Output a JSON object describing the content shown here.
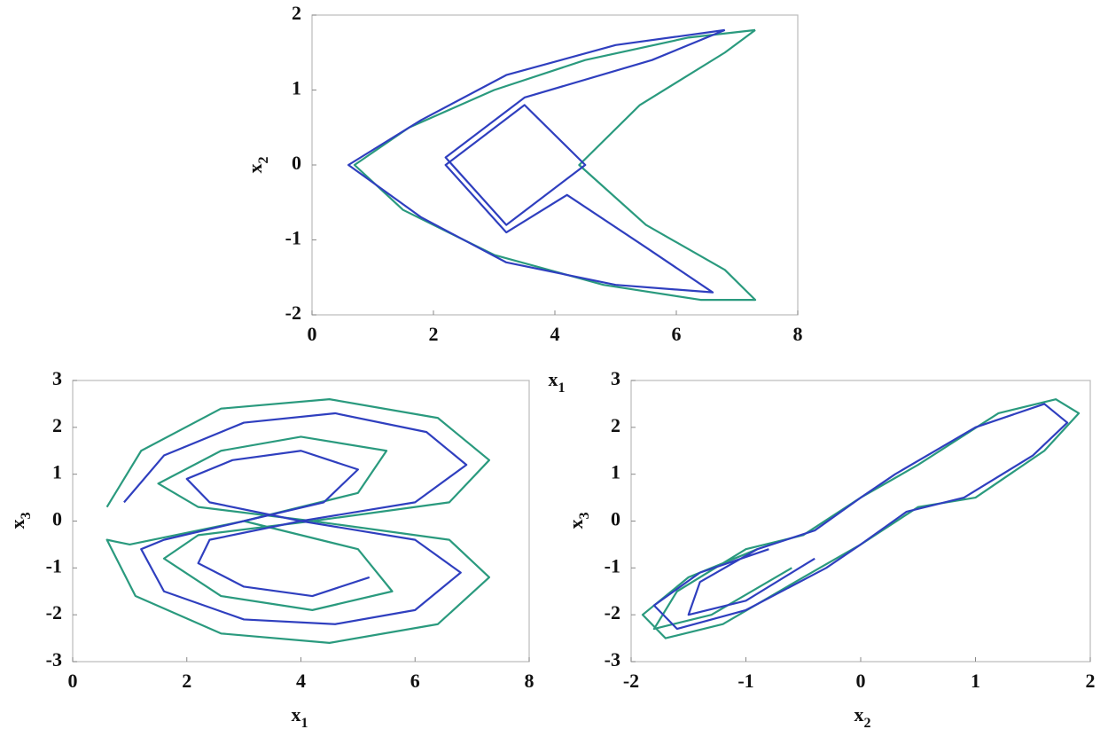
{
  "chart_data": [
    {
      "type": "line",
      "xlabel": "x",
      "xlabel_sub": "1",
      "ylabel": "x",
      "ylabel_sub": "2",
      "xlim": [
        0,
        8
      ],
      "ylim": [
        -2,
        2
      ],
      "xticks": [
        0,
        2,
        4,
        6,
        8
      ],
      "yticks": [
        -2,
        -1,
        0,
        1,
        2
      ],
      "series": [
        {
          "color": "#2a9a7e",
          "x": [
            7.3,
            6.2,
            4.5,
            3,
            1.6,
            0.7,
            1.5,
            3,
            4.8,
            6.4,
            7.3,
            6.8,
            5.5,
            4.4,
            5.4,
            6.8,
            7.3
          ],
          "values": [
            1.8,
            1.7,
            1.4,
            1,
            0.5,
            0,
            -0.6,
            -1.2,
            -1.6,
            -1.8,
            -1.8,
            -1.4,
            -0.8,
            0,
            0.8,
            1.5,
            1.8
          ]
        },
        {
          "color": "#2f3fbf",
          "x": [
            6.8,
            5,
            3.2,
            1.8,
            0.6,
            1.8,
            3.2,
            5,
            6.6,
            5.5,
            4.2,
            3.2,
            2.2,
            3.5,
            4.5,
            3.2,
            2.2,
            3.5,
            5.6,
            6.8
          ],
          "values": [
            1.8,
            1.6,
            1.2,
            0.6,
            0,
            -0.7,
            -1.3,
            -1.6,
            -1.7,
            -1.1,
            -0.4,
            -0.9,
            0,
            0.8,
            0,
            -0.8,
            0.1,
            0.9,
            1.4,
            1.8
          ]
        }
      ]
    },
    {
      "type": "line",
      "xlabel": "x",
      "xlabel_sub": "1",
      "ylabel": "x",
      "ylabel_sub": "3",
      "xlim": [
        0,
        8
      ],
      "ylim": [
        -3,
        3
      ],
      "xticks": [
        0,
        2,
        4,
        6,
        8
      ],
      "yticks": [
        -3,
        -2,
        -1,
        0,
        1,
        2,
        3
      ],
      "series": [
        {
          "color": "#2a9a7e",
          "x": [
            0.6,
            1.2,
            2.6,
            4.5,
            6.4,
            7.3,
            6.6,
            4.2,
            2.2,
            1.5,
            2.6,
            4,
            5.5,
            5,
            3,
            1,
            0.6,
            1.1,
            2.6,
            4.5,
            6.4,
            7.3,
            6.6,
            4.2,
            2.2,
            1.6,
            2.6,
            4.2,
            5.6,
            5,
            3
          ],
          "values": [
            0.3,
            1.5,
            2.4,
            2.6,
            2.2,
            1.3,
            0.4,
            0,
            0.3,
            0.8,
            1.5,
            1.8,
            1.5,
            0.6,
            0,
            -0.5,
            -0.4,
            -1.6,
            -2.4,
            -2.6,
            -2.2,
            -1.2,
            -0.4,
            0,
            -0.3,
            -0.8,
            -1.6,
            -1.9,
            -1.5,
            -0.6,
            0
          ]
        },
        {
          "color": "#2f3fbf",
          "x": [
            0.9,
            1.6,
            3,
            4.6,
            6.2,
            6.9,
            6,
            4,
            2.4,
            2,
            2.8,
            4,
            5,
            4.4,
            3,
            1.6,
            1.2,
            1.6,
            3,
            4.6,
            6,
            6.8,
            6,
            4,
            2.4,
            2.2,
            3,
            4.2,
            5.2
          ],
          "values": [
            0.4,
            1.4,
            2.1,
            2.3,
            1.9,
            1.2,
            0.4,
            0,
            0.4,
            0.9,
            1.3,
            1.5,
            1.1,
            0.4,
            0,
            -0.4,
            -0.6,
            -1.5,
            -2.1,
            -2.2,
            -1.9,
            -1.1,
            -0.4,
            0,
            -0.4,
            -0.9,
            -1.4,
            -1.6,
            -1.2
          ]
        }
      ]
    },
    {
      "type": "line",
      "xlabel": "x",
      "xlabel_sub": "2",
      "ylabel": "x",
      "ylabel_sub": "3",
      "xlim": [
        -2,
        2
      ],
      "ylim": [
        -3,
        3
      ],
      "xticks": [
        -2,
        -1,
        0,
        1,
        2
      ],
      "yticks": [
        -3,
        -2,
        -1,
        0,
        1,
        2,
        3
      ],
      "series": [
        {
          "color": "#2a9a7e",
          "x": [
            -0.9,
            -1.5,
            -1.9,
            -1.7,
            -1.2,
            -0.5,
            0,
            0.5,
            1,
            1.6,
            1.9,
            1.7,
            1.2,
            0.5,
            0,
            -0.5,
            -1,
            -1.6,
            -1.8,
            -1.3,
            -0.6
          ],
          "values": [
            -0.6,
            -1.2,
            -2,
            -2.5,
            -2.2,
            -1.2,
            -0.5,
            0.3,
            0.5,
            1.5,
            2.3,
            2.6,
            2.3,
            1.2,
            0.5,
            -0.3,
            -0.6,
            -1.5,
            -2.3,
            -2,
            -1
          ]
        },
        {
          "color": "#2f3fbf",
          "x": [
            -0.8,
            -1.4,
            -1.8,
            -1.6,
            -1,
            -0.3,
            0,
            0.4,
            0.9,
            1.5,
            1.8,
            1.6,
            1,
            0.3,
            0,
            -0.4,
            -0.9,
            -1.4,
            -1.5,
            -1,
            -0.4
          ],
          "values": [
            -0.6,
            -1.1,
            -1.8,
            -2.3,
            -1.9,
            -1,
            -0.5,
            0.2,
            0.5,
            1.4,
            2.1,
            2.5,
            2,
            1,
            0.5,
            -0.2,
            -0.6,
            -1.3,
            -2,
            -1.7,
            -0.8
          ]
        }
      ]
    }
  ]
}
